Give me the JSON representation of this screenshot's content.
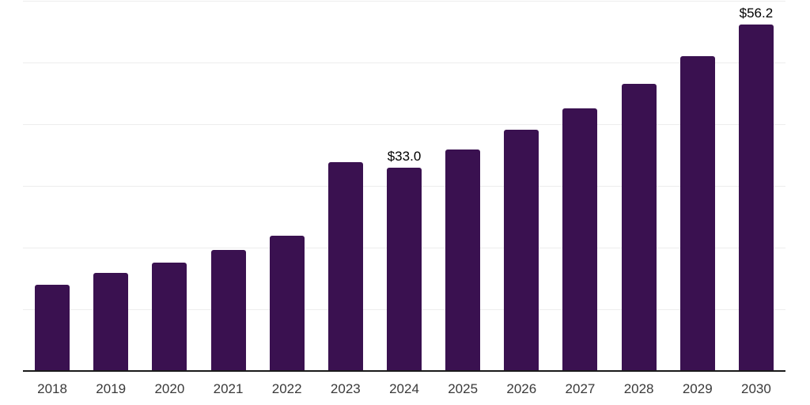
{
  "chart_data": {
    "type": "bar",
    "categories": [
      "2018",
      "2019",
      "2020",
      "2021",
      "2022",
      "2023",
      "2024",
      "2025",
      "2026",
      "2027",
      "2028",
      "2029",
      "2030"
    ],
    "values": [
      14.0,
      15.9,
      17.6,
      19.6,
      21.9,
      33.8,
      33.0,
      35.9,
      39.1,
      42.6,
      46.5,
      51.0,
      56.2
    ],
    "data_labels": [
      null,
      null,
      null,
      null,
      null,
      null,
      "$33.0",
      null,
      null,
      null,
      null,
      null,
      "$56.2"
    ],
    "title": "",
    "xlabel": "",
    "ylabel": "",
    "ylim": [
      0,
      60
    ],
    "gridline_step": 10,
    "grid": true,
    "y_tick_labels_visible": false,
    "legend": null,
    "colors": {
      "bar": "#3a1150",
      "gridline": "#ededed",
      "axis_line": "#1a1a1a",
      "tick_label": "#3a3a3a",
      "data_label": "#000000",
      "background": "#ffffff"
    }
  }
}
